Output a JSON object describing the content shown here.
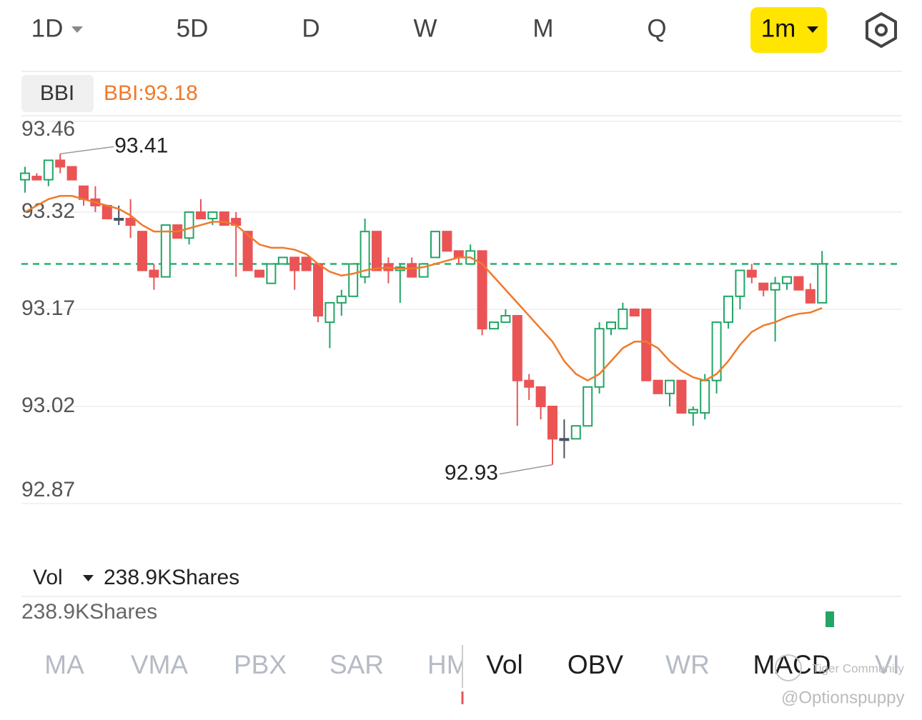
{
  "tabs": {
    "items": [
      "1D",
      "5D",
      "D",
      "W",
      "M",
      "Q",
      "1m"
    ],
    "active": "1m"
  },
  "indicator": {
    "button": "BBI",
    "label": "BBI:93.18"
  },
  "chart_data": {
    "type": "candlestick",
    "open": [
      93.37,
      93.375,
      93.37,
      93.4,
      93.39,
      93.36,
      93.34,
      93.33,
      93.31,
      93.31,
      93.29,
      93.23,
      93.22,
      93.3,
      93.28,
      93.32,
      93.31,
      93.32,
      93.31,
      93.29,
      93.23,
      93.21,
      93.24,
      93.25,
      93.25,
      93.24,
      93.15,
      93.18,
      93.19,
      93.22,
      93.29,
      93.24,
      93.23,
      93.24,
      93.22,
      93.25,
      93.29,
      93.26,
      93.24,
      93.26,
      93.14,
      93.15,
      93.16,
      93.06,
      93.05,
      93.02,
      92.97,
      92.97,
      92.99,
      93.05,
      93.14,
      93.14,
      93.17,
      93.17,
      93.06,
      93.04,
      93.06,
      93.01,
      93.01,
      93.06,
      93.15,
      93.19,
      93.23,
      93.21,
      93.2,
      93.21,
      93.22,
      93.2,
      93.18
    ],
    "high": [
      93.39,
      93.38,
      93.4,
      93.41,
      93.39,
      93.36,
      93.36,
      93.33,
      93.33,
      93.34,
      93.29,
      93.24,
      93.3,
      93.3,
      93.32,
      93.34,
      93.32,
      93.32,
      93.32,
      93.29,
      93.23,
      93.24,
      93.25,
      93.25,
      93.25,
      93.24,
      93.18,
      93.2,
      93.24,
      93.31,
      93.29,
      93.25,
      93.24,
      93.25,
      93.24,
      93.29,
      93.29,
      93.26,
      93.27,
      93.26,
      93.15,
      93.17,
      93.16,
      93.07,
      93.05,
      93.02,
      93.0,
      92.99,
      93.05,
      93.15,
      93.15,
      93.18,
      93.17,
      93.17,
      93.06,
      93.06,
      93.06,
      93.02,
      93.07,
      93.15,
      93.19,
      93.23,
      93.24,
      93.21,
      93.22,
      93.22,
      93.22,
      93.21,
      93.26
    ],
    "low": [
      93.35,
      93.37,
      93.36,
      93.38,
      93.37,
      93.33,
      93.32,
      93.31,
      93.3,
      93.28,
      93.23,
      93.2,
      93.22,
      93.28,
      93.27,
      93.31,
      93.3,
      93.3,
      93.22,
      93.23,
      93.22,
      93.21,
      93.24,
      93.2,
      93.23,
      93.15,
      93.11,
      93.16,
      93.19,
      93.21,
      93.23,
      93.21,
      93.18,
      93.22,
      93.22,
      93.25,
      93.26,
      93.24,
      93.24,
      93.13,
      93.14,
      93.15,
      92.99,
      93.03,
      93.0,
      92.93,
      92.94,
      92.97,
      92.99,
      93.04,
      93.13,
      93.14,
      93.16,
      93.06,
      93.04,
      93.02,
      93.01,
      92.99,
      93.0,
      93.04,
      93.14,
      93.17,
      93.21,
      93.19,
      93.12,
      93.2,
      93.2,
      93.18,
      93.18
    ],
    "close": [
      93.38,
      93.37,
      93.4,
      93.39,
      93.37,
      93.34,
      93.33,
      93.31,
      93.31,
      93.3,
      93.23,
      93.22,
      93.3,
      93.28,
      93.32,
      93.31,
      93.32,
      93.3,
      93.3,
      93.23,
      93.22,
      93.24,
      93.25,
      93.23,
      93.23,
      93.16,
      93.18,
      93.19,
      93.24,
      93.29,
      93.23,
      93.23,
      93.235,
      93.22,
      93.24,
      93.29,
      93.26,
      93.25,
      93.26,
      93.14,
      93.15,
      93.16,
      93.06,
      93.05,
      93.02,
      92.97,
      92.97,
      92.99,
      93.05,
      93.14,
      93.15,
      93.17,
      93.16,
      93.06,
      93.04,
      93.06,
      93.01,
      93.015,
      93.06,
      93.15,
      93.19,
      93.23,
      93.22,
      93.2,
      93.21,
      93.22,
      93.2,
      93.18,
      93.24
    ],
    "up_color": "#22a565",
    "down_color": "#ea5455",
    "flat_color": "#4b5260",
    "series": [
      {
        "name": "BBI",
        "color": "#f07a2a",
        "values": [
          93.32,
          93.33,
          93.34,
          93.345,
          93.345,
          93.34,
          93.335,
          93.33,
          93.325,
          93.315,
          93.3,
          93.29,
          93.29,
          93.29,
          93.295,
          93.3,
          93.305,
          93.305,
          93.3,
          93.285,
          93.27,
          93.265,
          93.265,
          93.262,
          93.255,
          93.24,
          93.228,
          93.222,
          93.225,
          93.23,
          93.233,
          93.234,
          93.233,
          93.233,
          93.235,
          93.24,
          93.245,
          93.25,
          93.25,
          93.24,
          93.22,
          93.2,
          93.18,
          93.16,
          93.14,
          93.12,
          93.09,
          93.07,
          93.06,
          93.07,
          93.09,
          93.11,
          93.12,
          93.12,
          93.11,
          93.09,
          93.075,
          93.065,
          93.06,
          93.07,
          93.09,
          93.115,
          93.135,
          93.145,
          93.15,
          93.158,
          93.163,
          93.165,
          93.172
        ]
      }
    ],
    "reference_value": 93.24,
    "reference_color": "#22b070",
    "high_label": "93.41",
    "low_label": "92.93",
    "ylim": [
      92.87,
      93.46
    ],
    "yticks": [
      93.46,
      93.32,
      93.17,
      93.02,
      92.87
    ],
    "grid": true
  },
  "volume_panel": {
    "selector": "Vol",
    "label": "238.9KShares",
    "axis_label": "238.9KShares"
  },
  "bottom_tabs": {
    "items": [
      "MA",
      "VMA",
      "PBX",
      "SAR",
      "HM",
      "Vol",
      "OBV",
      "WR",
      "MACD",
      "VI"
    ],
    "active": [
      "Vol",
      "OBV",
      "MACD"
    ]
  },
  "watermark": {
    "community": "Tiger Community",
    "author": "@Optionspuppy"
  }
}
